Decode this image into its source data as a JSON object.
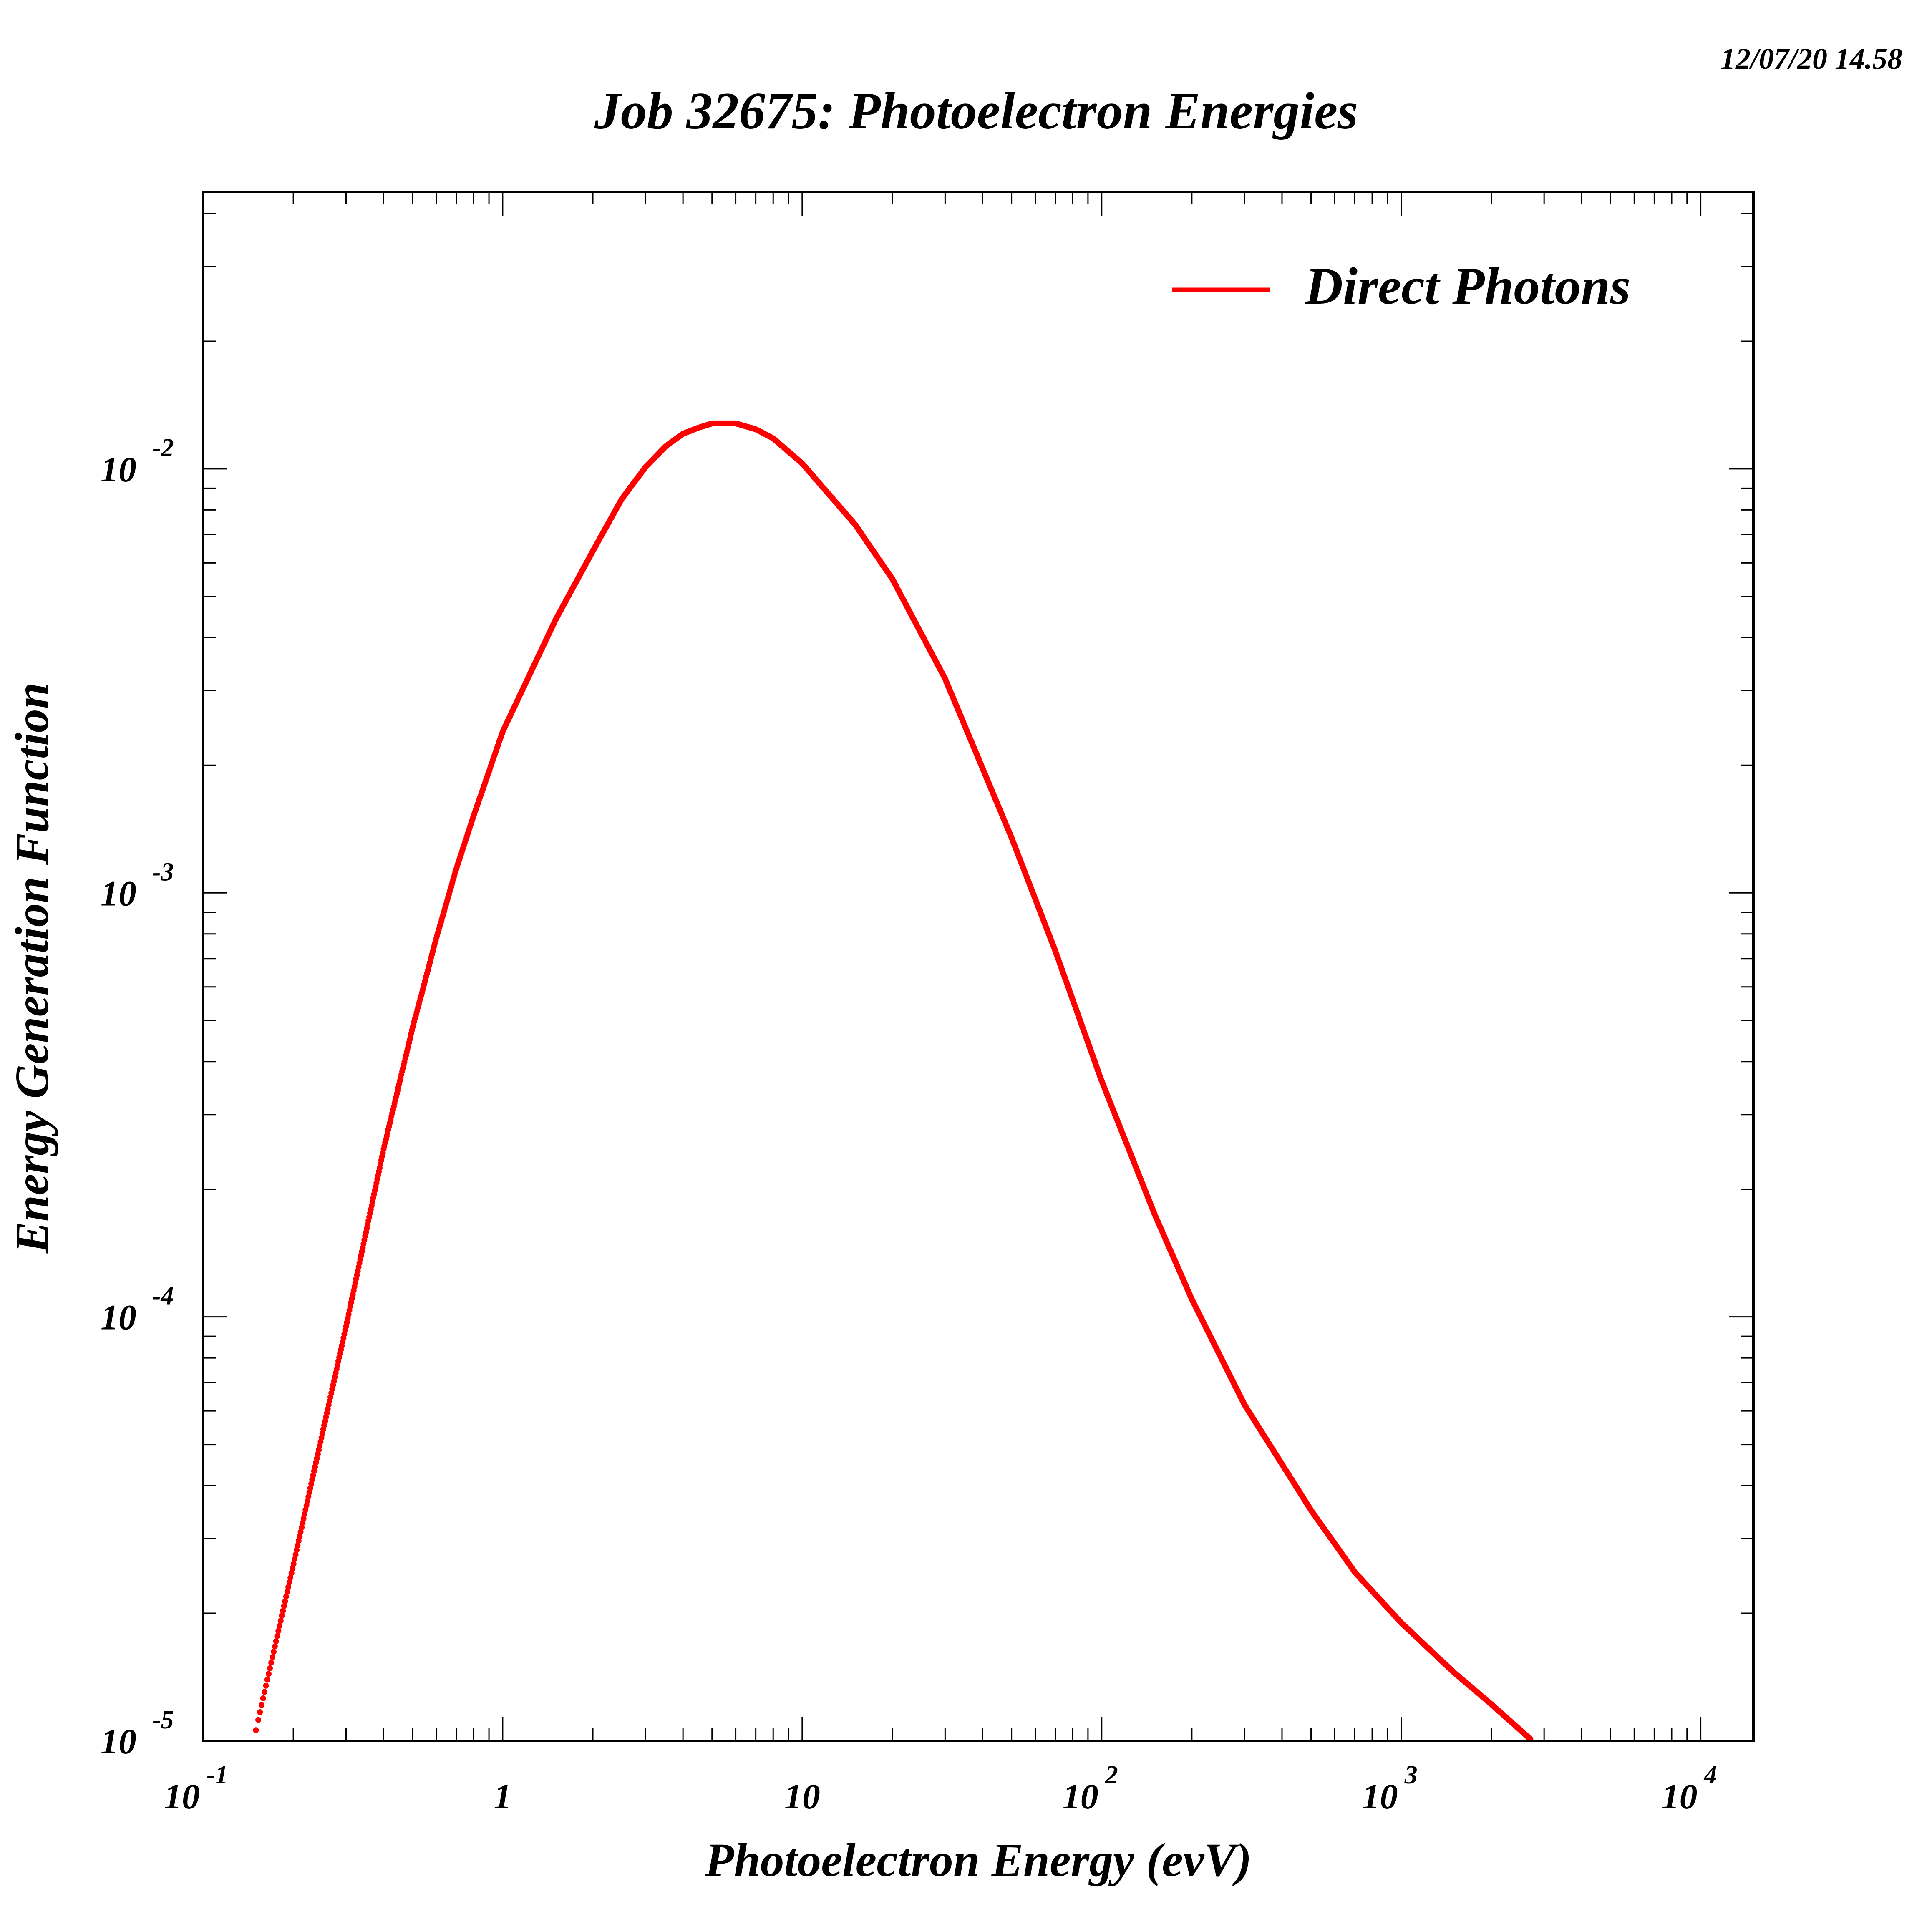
{
  "timestamp": "12/07/20   14.58",
  "chart_data": {
    "type": "line",
    "title": "Job 32675: Photoelectron Energies",
    "xlabel": "Photoelectron Energy (evV)",
    "ylabel": "Energy Generation Function",
    "x_scale": "log",
    "y_scale": "log",
    "xlim": [
      0.1,
      15000
    ],
    "ylim": [
      1e-05,
      0.045
    ],
    "grid": false,
    "legend": "top-right",
    "x_ticks": [
      {
        "value": 0.1,
        "base": "10",
        "exp": "-1"
      },
      {
        "value": 1,
        "base": "1",
        "exp": ""
      },
      {
        "value": 10,
        "base": "10",
        "exp": ""
      },
      {
        "value": 100,
        "base": "10",
        "exp": "2"
      },
      {
        "value": 1000,
        "base": "10",
        "exp": "3"
      },
      {
        "value": 10000,
        "base": "10",
        "exp": "4"
      }
    ],
    "y_ticks": [
      {
        "value": 1e-05,
        "base": "10",
        "exp": "-5"
      },
      {
        "value": 0.0001,
        "base": "10",
        "exp": "-4"
      },
      {
        "value": 0.001,
        "base": "10",
        "exp": "-3"
      },
      {
        "value": 0.01,
        "base": "10",
        "exp": "-2"
      }
    ],
    "series": [
      {
        "name": "Direct Photons",
        "color": "#ff0000",
        "points": [
          [
            0.15,
            1.06e-05
          ],
          [
            0.2,
            2.6e-05
          ],
          [
            0.3,
            9.5e-05
          ],
          [
            0.4,
            0.000248
          ],
          [
            0.5,
            0.00048
          ],
          [
            0.6,
            0.00078
          ],
          [
            0.7,
            0.00114
          ],
          [
            0.8,
            0.00152
          ],
          [
            1.0,
            0.0024
          ],
          [
            1.5,
            0.0044
          ],
          [
            2.0,
            0.0064
          ],
          [
            2.5,
            0.0085
          ],
          [
            3.0,
            0.0101
          ],
          [
            3.5,
            0.0113
          ],
          [
            4.0,
            0.0121
          ],
          [
            4.5,
            0.0125
          ],
          [
            5.0,
            0.0128
          ],
          [
            6.0,
            0.0128
          ],
          [
            7.0,
            0.0124
          ],
          [
            8.0,
            0.0118
          ],
          [
            10.0,
            0.0103
          ],
          [
            15.0,
            0.0074
          ],
          [
            20.0,
            0.0055
          ],
          [
            30.0,
            0.0032
          ],
          [
            50.0,
            0.00135
          ],
          [
            70.0,
            0.00073
          ],
          [
            100.0,
            0.00036
          ],
          [
            150.0,
            0.000175
          ],
          [
            200.0,
            0.00011
          ],
          [
            300.0,
            6.2e-05
          ],
          [
            500.0,
            3.5e-05
          ],
          [
            700.0,
            2.5e-05
          ],
          [
            1000.0,
            1.9e-05
          ],
          [
            1500.0,
            1.45e-05
          ],
          [
            2000.0,
            1.22e-05
          ],
          [
            2700.0,
            1.01e-05
          ]
        ]
      }
    ]
  }
}
